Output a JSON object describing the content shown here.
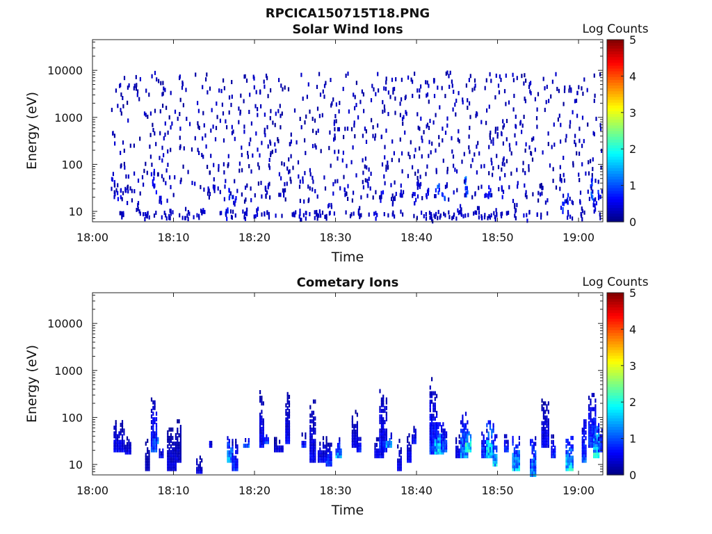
{
  "figure_title": "RPCICA150715T18.PNG",
  "chart_data": [
    {
      "type": "heatmap",
      "title": "Solar Wind Ions",
      "xlabel": "Time",
      "ylabel": "Energy (eV)",
      "x_ticks": [
        "18:00",
        "18:10",
        "18:20",
        "18:30",
        "18:40",
        "18:50",
        "19:00"
      ],
      "x_range_min": [
        0,
        63
      ],
      "y_ticks": [
        "10",
        "100",
        "1000",
        "10000"
      ],
      "y_scale": "log",
      "y_range_ev": [
        6,
        45000
      ],
      "colorbar": {
        "label": "Log Counts",
        "ticks": [
          "0",
          "1",
          "2",
          "3",
          "4",
          "5"
        ],
        "range": [
          0,
          5
        ],
        "colormap": "jet"
      },
      "cells": [
        [
          2.5,
          40,
          0.4
        ],
        [
          2.8,
          28,
          0.3
        ],
        [
          3.2,
          22,
          0.5
        ],
        [
          3.5,
          9,
          0.3
        ],
        [
          4.0,
          35,
          0.4
        ],
        [
          5.5,
          12,
          0.3
        ],
        [
          6.6,
          9,
          0.4
        ],
        [
          7.4,
          55,
          0.8
        ],
        [
          7.6,
          30,
          0.6
        ],
        [
          8.2,
          18,
          0.4
        ],
        [
          9.6,
          9,
          0.4
        ],
        [
          11.5,
          9,
          0.3
        ],
        [
          13.4,
          9,
          0.4
        ],
        [
          14.2,
          22,
          0.3
        ],
        [
          14.8,
          40,
          0.4
        ],
        [
          16.6,
          9,
          0.8
        ],
        [
          17.0,
          22,
          0.9
        ],
        [
          17.4,
          18,
          0.6
        ],
        [
          19.0,
          9,
          0.4
        ],
        [
          20.2,
          10,
          0.5
        ],
        [
          21.5,
          28,
          0.4
        ],
        [
          23.6,
          22,
          0.3
        ],
        [
          25.5,
          8,
          0.4
        ],
        [
          27.6,
          9,
          0.3
        ],
        [
          29.2,
          12,
          0.4
        ],
        [
          31.2,
          28,
          0.5
        ],
        [
          33.0,
          9,
          0.3
        ],
        [
          34.0,
          40,
          0.4
        ],
        [
          34.8,
          7,
          0.5
        ],
        [
          35.6,
          22,
          0.6
        ],
        [
          37.0,
          18,
          0.3
        ],
        [
          38.2,
          28,
          0.4
        ],
        [
          39.6,
          18,
          0.5
        ],
        [
          40.2,
          40,
          0.4
        ],
        [
          41.2,
          22,
          0.6
        ],
        [
          42.0,
          7,
          0.3
        ],
        [
          42.5,
          28,
          1.0
        ],
        [
          43.2,
          22,
          0.9
        ],
        [
          45.2,
          12,
          0.4
        ],
        [
          45.8,
          40,
          1.1
        ],
        [
          46.1,
          28,
          1.0
        ],
        [
          47.4,
          9,
          0.3
        ],
        [
          48.6,
          22,
          0.5
        ],
        [
          49.0,
          28,
          0.8
        ],
        [
          49.8,
          9,
          0.4
        ],
        [
          50.6,
          25,
          0.5
        ],
        [
          52.2,
          12,
          0.3
        ],
        [
          53.4,
          7,
          0.5
        ],
        [
          55.4,
          28,
          0.4
        ],
        [
          57.6,
          40,
          0.3
        ],
        [
          58.0,
          12,
          0.9
        ],
        [
          58.4,
          18,
          0.8
        ],
        [
          60.4,
          9,
          0.3
        ],
        [
          61.4,
          40,
          0.9
        ],
        [
          61.6,
          22,
          1.0
        ],
        [
          62.0,
          14,
          0.6
        ],
        [
          62.4,
          22,
          0.8
        ]
      ]
    },
    {
      "type": "heatmap",
      "title": "Cometary Ions",
      "xlabel": "Time",
      "ylabel": "Energy (eV)",
      "x_ticks": [
        "18:00",
        "18:10",
        "18:20",
        "18:30",
        "18:40",
        "18:50",
        "19:00"
      ],
      "x_range_min": [
        0,
        63
      ],
      "y_ticks": [
        "10",
        "100",
        "1000",
        "10000"
      ],
      "y_scale": "log",
      "y_range_ev": [
        6,
        45000
      ],
      "colorbar": {
        "label": "Log Counts",
        "ticks": [
          "0",
          "1",
          "2",
          "3",
          "4",
          "5"
        ],
        "range": [
          0,
          5
        ],
        "colormap": "jet"
      },
      "bursts": [
        [
          2.6,
          1.4,
          20,
          90,
          0.6
        ],
        [
          4.0,
          0.8,
          18,
          40,
          0.5
        ],
        [
          6.5,
          0.6,
          8,
          35,
          0.3
        ],
        [
          7.2,
          0.8,
          20,
          250,
          0.9
        ],
        [
          7.6,
          0.6,
          30,
          45,
          1.2
        ],
        [
          8.2,
          0.6,
          15,
          25,
          0.7
        ],
        [
          9.2,
          1.2,
          8,
          60,
          0.5
        ],
        [
          10.4,
          0.6,
          12,
          100,
          0.4
        ],
        [
          12.8,
          0.8,
          7,
          15,
          0.5
        ],
        [
          14.4,
          0.4,
          25,
          35,
          0.6
        ],
        [
          16.6,
          0.8,
          12,
          40,
          1.5
        ],
        [
          17.2,
          0.8,
          8,
          35,
          0.8
        ],
        [
          18.6,
          0.8,
          25,
          35,
          1.2
        ],
        [
          20.6,
          0.6,
          25,
          350,
          0.6
        ],
        [
          21.0,
          0.8,
          30,
          45,
          1.1
        ],
        [
          22.4,
          1.2,
          20,
          35,
          0.5
        ],
        [
          23.8,
          0.6,
          30,
          350,
          0.6
        ],
        [
          25.8,
          0.6,
          25,
          45,
          0.7
        ],
        [
          26.8,
          0.8,
          12,
          230,
          0.6
        ],
        [
          27.8,
          1.2,
          12,
          40,
          0.6
        ],
        [
          28.8,
          0.8,
          10,
          30,
          0.9
        ],
        [
          30.0,
          0.8,
          15,
          35,
          1.4
        ],
        [
          32.0,
          0.8,
          25,
          150,
          0.5
        ],
        [
          32.6,
          0.6,
          20,
          50,
          0.7
        ],
        [
          34.8,
          1.2,
          15,
          35,
          0.6
        ],
        [
          35.4,
          1.0,
          20,
          400,
          0.7
        ],
        [
          36.2,
          0.8,
          25,
          45,
          1.3
        ],
        [
          37.6,
          0.6,
          8,
          35,
          0.5
        ],
        [
          38.8,
          0.6,
          12,
          45,
          0.6
        ],
        [
          39.4,
          0.6,
          30,
          70,
          0.7
        ],
        [
          41.6,
          1.0,
          18,
          700,
          0.8
        ],
        [
          42.2,
          1.2,
          18,
          80,
          1.8
        ],
        [
          43.0,
          0.8,
          20,
          60,
          1.1
        ],
        [
          44.8,
          0.8,
          15,
          40,
          0.6
        ],
        [
          45.4,
          1.0,
          15,
          120,
          1.4
        ],
        [
          46.0,
          0.8,
          20,
          60,
          2.2
        ],
        [
          48.0,
          1.0,
          15,
          55,
          1.0
        ],
        [
          48.6,
          1.0,
          15,
          90,
          2.0
        ],
        [
          49.4,
          0.6,
          10,
          40,
          1.6
        ],
        [
          50.8,
          0.6,
          20,
          40,
          0.9
        ],
        [
          51.8,
          1.0,
          8,
          40,
          1.6
        ],
        [
          54.0,
          0.8,
          6,
          40,
          1.4
        ],
        [
          55.4,
          1.0,
          25,
          260,
          0.6
        ],
        [
          56.6,
          0.6,
          15,
          40,
          0.8
        ],
        [
          58.4,
          1.0,
          8,
          40,
          1.8
        ],
        [
          60.4,
          0.6,
          12,
          120,
          1.0
        ],
        [
          61.2,
          1.0,
          25,
          350,
          0.9
        ],
        [
          61.8,
          0.8,
          15,
          100,
          1.9
        ],
        [
          62.4,
          0.6,
          20,
          60,
          1.1
        ]
      ]
    }
  ]
}
